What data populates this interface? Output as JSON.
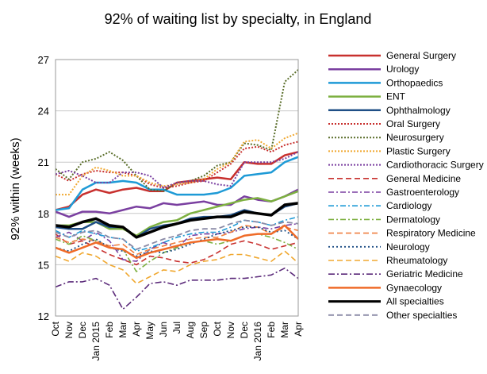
{
  "chart_data": {
    "type": "line",
    "title": "92% of waiting list by specialty, in England",
    "ylabel": "92% within (weeks)",
    "xlabel": "",
    "ylim": [
      12,
      27
    ],
    "yticks": [
      12,
      15,
      18,
      21,
      24,
      27
    ],
    "grid": true,
    "legend_position": "right",
    "categories": [
      "Oct",
      "Nov",
      "Dec",
      "Jan 2015",
      "Feb",
      "Mar",
      "Apr",
      "May",
      "Jun",
      "Jul",
      "Aug",
      "Sep",
      "Oct",
      "Nov",
      "Dec",
      "Jan 2016",
      "Feb",
      "Mar",
      "Apr"
    ],
    "series": [
      {
        "name": "General Surgery",
        "color": "#c8302e",
        "dash": "solid",
        "width": 2.5,
        "values": [
          18.2,
          18.4,
          19.1,
          19.4,
          19.2,
          19.4,
          19.5,
          19.3,
          19.3,
          19.8,
          19.9,
          20.0,
          20.1,
          20.0,
          21.0,
          20.9,
          20.9,
          21.4,
          21.6
        ]
      },
      {
        "name": "Urology",
        "color": "#7a3fa0",
        "dash": "solid",
        "width": 2.5,
        "values": [
          18.1,
          17.8,
          18.1,
          18.1,
          18.0,
          18.2,
          18.4,
          18.3,
          18.6,
          18.5,
          18.6,
          18.7,
          18.5,
          18.5,
          19.0,
          18.8,
          18.7,
          19.0,
          19.4
        ]
      },
      {
        "name": "Orthopaedics",
        "color": "#1e9ad6",
        "dash": "solid",
        "width": 2.5,
        "values": [
          18.2,
          18.3,
          19.4,
          19.8,
          19.8,
          19.9,
          19.8,
          19.4,
          19.4,
          19.1,
          19.1,
          19.1,
          19.2,
          19.5,
          20.2,
          20.3,
          20.4,
          21.0,
          21.3
        ]
      },
      {
        "name": "ENT",
        "color": "#7db040",
        "dash": "solid",
        "width": 2.5,
        "values": [
          17.3,
          17.3,
          17.5,
          17.5,
          17.1,
          17.1,
          16.7,
          17.2,
          17.5,
          17.6,
          18.0,
          18.2,
          18.4,
          18.6,
          18.8,
          18.9,
          18.7,
          19.0,
          19.3
        ]
      },
      {
        "name": "Ophthalmology",
        "color": "#1f4f86",
        "dash": "solid",
        "width": 2.5,
        "values": [
          17.2,
          17.1,
          17.1,
          17.5,
          17.2,
          17.2,
          16.6,
          17.1,
          17.3,
          17.4,
          17.7,
          17.8,
          17.8,
          17.9,
          18.2,
          18.0,
          17.9,
          18.4,
          18.6
        ]
      },
      {
        "name": "Oral Surgery",
        "color": "#c8302e",
        "dash": "2,2",
        "width": 2,
        "values": [
          20.3,
          19.9,
          20.3,
          20.5,
          20.4,
          20.4,
          20.2,
          19.7,
          19.5,
          19.6,
          19.8,
          19.9,
          20.4,
          20.9,
          21.8,
          21.9,
          21.6,
          22.0,
          22.2
        ]
      },
      {
        "name": "Neurosurgery",
        "color": "#5a6e2a",
        "dash": "2,2",
        "width": 2,
        "values": [
          20.6,
          20.0,
          21.0,
          21.2,
          21.6,
          21.1,
          20.2,
          19.4,
          19.3,
          19.8,
          19.9,
          20.2,
          20.8,
          21.0,
          22.1,
          22.0,
          21.7,
          25.7,
          26.4
        ]
      },
      {
        "name": "Plastic Surgery",
        "color": "#f0a830",
        "dash": "2,2",
        "width": 2,
        "values": [
          19.1,
          19.1,
          20.2,
          20.7,
          20.5,
          20.2,
          20.2,
          19.8,
          19.6,
          19.7,
          19.8,
          20.0,
          20.6,
          21.0,
          22.2,
          22.3,
          21.8,
          22.4,
          22.7
        ]
      },
      {
        "name": "Cardiothoracic Surgery",
        "color": "#7a3fa0",
        "dash": "2,2",
        "width": 2,
        "values": [
          20.3,
          20.5,
          20.2,
          19.8,
          19.8,
          20.4,
          20.4,
          20.2,
          19.5,
          19.8,
          19.9,
          19.9,
          19.7,
          19.6,
          21.0,
          21.0,
          21.0,
          21.2,
          21.6
        ]
      },
      {
        "name": "General Medicine",
        "color": "#c8302e",
        "dash": "7,4",
        "width": 1.6,
        "values": [
          16.8,
          16.2,
          16.4,
          16.0,
          15.6,
          15.3,
          15.0,
          15.5,
          15.4,
          15.2,
          15.1,
          15.3,
          15.7,
          16.2,
          16.4,
          16.2,
          15.9,
          16.1,
          16.3
        ]
      },
      {
        "name": "Gastroenterology",
        "color": "#7a3fa0",
        "dash": "7,3,2,3",
        "width": 1.6,
        "values": [
          16.6,
          16.9,
          16.4,
          16.9,
          16.4,
          15.3,
          15.2,
          15.9,
          16.3,
          16.0,
          16.7,
          16.8,
          16.8,
          16.9,
          17.1,
          17.2,
          17.1,
          17.3,
          17.4
        ]
      },
      {
        "name": "Cardiology",
        "color": "#1e9ad6",
        "dash": "7,3,2,3",
        "width": 1.6,
        "values": [
          17.0,
          16.6,
          17.0,
          16.8,
          16.6,
          16.5,
          15.8,
          16.0,
          16.3,
          16.6,
          16.8,
          16.9,
          16.9,
          17.2,
          17.6,
          17.5,
          17.3,
          17.6,
          17.8
        ]
      },
      {
        "name": "Dermatology",
        "color": "#7db040",
        "dash": "7,3,2,3",
        "width": 1.6,
        "values": [
          16.5,
          16.2,
          16.7,
          16.4,
          16.0,
          15.9,
          14.6,
          15.2,
          15.7,
          16.0,
          16.3,
          16.4,
          16.2,
          16.4,
          16.7,
          16.8,
          16.6,
          16.3,
          15.9
        ]
      },
      {
        "name": "Respiratory Medicine",
        "color": "#ef7f3f",
        "dash": "7,4",
        "width": 1.6,
        "values": [
          16.6,
          16.3,
          16.5,
          16.4,
          16.1,
          16.2,
          15.6,
          15.9,
          16.1,
          16.3,
          16.5,
          16.6,
          16.6,
          16.9,
          17.3,
          17.2,
          16.8,
          17.2,
          17.0
        ]
      },
      {
        "name": "Neurology",
        "color": "#1f4f86",
        "dash": "2,3",
        "width": 1.8,
        "values": [
          16.0,
          15.8,
          16.2,
          16.5,
          16.0,
          15.8,
          15.5,
          15.8,
          15.7,
          15.9,
          16.2,
          16.5,
          16.8,
          17.0,
          17.2,
          17.2,
          16.9,
          17.0,
          16.5
        ]
      },
      {
        "name": "Rheumatology",
        "color": "#f0a830",
        "dash": "7,4",
        "width": 1.6,
        "values": [
          15.5,
          15.2,
          15.7,
          15.5,
          15.0,
          14.7,
          13.9,
          14.3,
          14.7,
          14.6,
          15.0,
          15.2,
          15.3,
          15.6,
          15.6,
          15.4,
          15.2,
          15.8,
          15.1
        ]
      },
      {
        "name": "Geriatric Medicine",
        "color": "#5b2a7a",
        "dash": "8,3,2,3",
        "width": 1.6,
        "values": [
          13.7,
          14.0,
          14.0,
          14.2,
          13.8,
          12.4,
          13.1,
          13.9,
          14.0,
          13.8,
          14.1,
          14.1,
          14.1,
          14.2,
          14.2,
          14.3,
          14.4,
          14.8,
          14.2
        ]
      },
      {
        "name": "Gynaecology",
        "color": "#ef6b28",
        "dash": "solid",
        "width": 2.5,
        "values": [
          16.0,
          15.7,
          16.0,
          16.3,
          16.0,
          15.9,
          15.4,
          15.7,
          15.9,
          16.1,
          16.3,
          16.4,
          16.5,
          16.4,
          16.7,
          16.8,
          16.8,
          17.3,
          16.5
        ]
      },
      {
        "name": "All specialties",
        "color": "#000000",
        "dash": "solid",
        "width": 3.5,
        "values": [
          17.3,
          17.2,
          17.5,
          17.7,
          17.3,
          17.2,
          16.6,
          16.9,
          17.2,
          17.4,
          17.6,
          17.7,
          17.8,
          17.8,
          18.1,
          18.0,
          17.9,
          18.5,
          18.6
        ]
      },
      {
        "name": "Other specialties",
        "color": "#8a8aa6",
        "dash": "7,4",
        "width": 1.8,
        "values": [
          16.9,
          16.6,
          16.9,
          17.0,
          16.6,
          16.5,
          15.9,
          16.2,
          16.5,
          16.7,
          17.0,
          17.1,
          17.1,
          17.4,
          17.6,
          17.5,
          17.3,
          17.5,
          17.4
        ]
      }
    ]
  }
}
